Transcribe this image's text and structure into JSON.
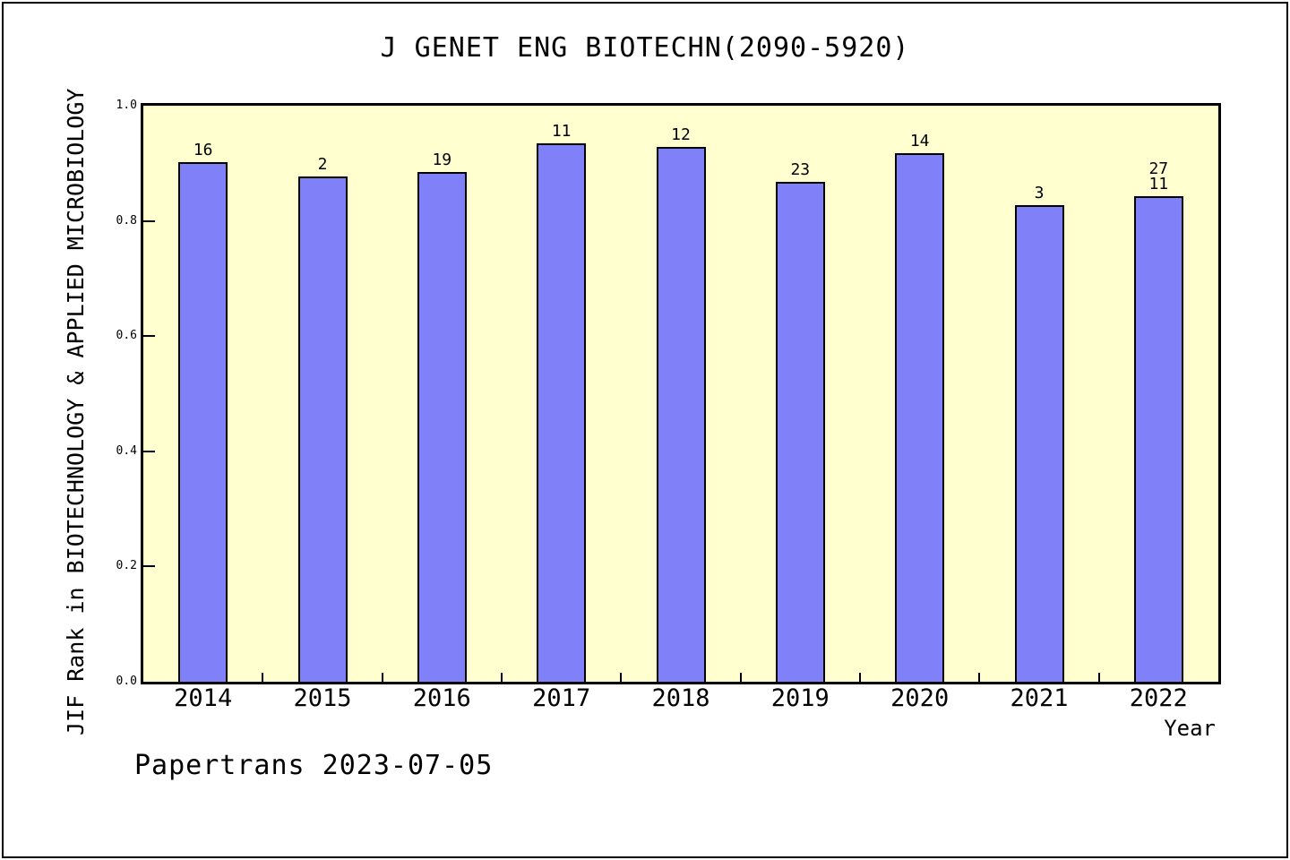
{
  "chart_data": {
    "type": "bar",
    "title": "J GENET ENG BIOTECHN(2090-5920)",
    "xlabel": "Year",
    "ylabel": "JIF Rank in BIOTECHNOLOGY & APPLIED MICROBIOLOGY",
    "categories": [
      "2014",
      "2015",
      "2016",
      "2017",
      "2018",
      "2019",
      "2020",
      "2021",
      "2022"
    ],
    "values": [
      0.902,
      0.877,
      0.885,
      0.934,
      0.928,
      0.868,
      0.918,
      0.827,
      0.843
    ],
    "bar_labels": [
      [
        "16"
      ],
      [
        "2"
      ],
      [
        "19"
      ],
      [
        "11"
      ],
      [
        "12"
      ],
      [
        "23"
      ],
      [
        "14"
      ],
      [
        "3"
      ],
      [
        "27",
        "11"
      ]
    ],
    "ylim": [
      0.0,
      1.0
    ],
    "yticks": [
      "0.0",
      "0.2",
      "0.4",
      "0.6",
      "0.8",
      "1.0"
    ],
    "grid": false,
    "legend": "none",
    "colors": {
      "bar_fill": "#8080F8",
      "bar_stroke": "#000000",
      "plot_bg": "#FFFFD0",
      "page_bg": "#FFFFFF",
      "text": "#000000"
    }
  },
  "footer": {
    "credit": "Papertrans 2023-07-05"
  }
}
